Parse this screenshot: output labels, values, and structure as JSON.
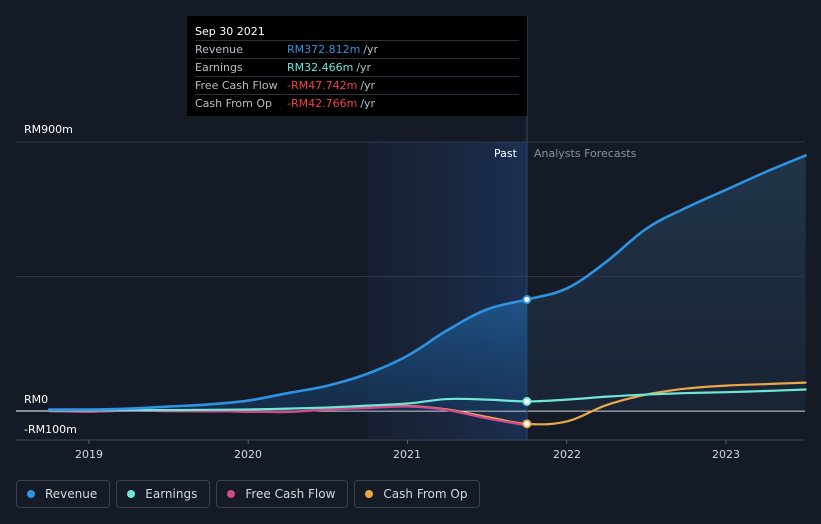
{
  "tooltip": {
    "date": "Sep 30 2021",
    "rows": [
      {
        "label": "Revenue",
        "value": "RM372.812m",
        "unit": "/yr",
        "color": "#2e93e3"
      },
      {
        "label": "Earnings",
        "value": "RM32.466m",
        "unit": "/yr",
        "color": "#6ee7d9"
      },
      {
        "label": "Free Cash Flow",
        "value": "-RM47.742m",
        "unit": "/yr",
        "color": "#ef4444"
      },
      {
        "label": "Cash From Op",
        "value": "-RM42.766m",
        "unit": "/yr",
        "color": "#ef4444"
      }
    ]
  },
  "labels": {
    "past": "Past",
    "forecast": "Analysts Forecasts"
  },
  "chart_data": {
    "type": "line",
    "title": "",
    "xlabel": "",
    "ylabel": "",
    "ylim": [
      -100,
      900
    ],
    "xlim": [
      2018.75,
      2023.5
    ],
    "y_tick_labels": [
      {
        "value": 900,
        "label": "RM900m"
      },
      {
        "value": 0,
        "label": "RM0"
      },
      {
        "value": -100,
        "label": "-RM100m"
      }
    ],
    "x_tick_labels": [
      {
        "value": 2019,
        "label": "2019"
      },
      {
        "value": 2020,
        "label": "2020"
      },
      {
        "value": 2021,
        "label": "2021"
      },
      {
        "value": 2022,
        "label": "2022"
      },
      {
        "value": 2023,
        "label": "2023"
      }
    ],
    "past_end": 2021.75,
    "highlight_start": 2020.75,
    "series": [
      {
        "name": "Revenue",
        "color": "#2e93e3",
        "x": [
          2018.75,
          2019.0,
          2019.25,
          2019.5,
          2019.75,
          2020.0,
          2020.25,
          2020.5,
          2020.75,
          2021.0,
          2021.25,
          2021.5,
          2021.75,
          2022.0,
          2022.25,
          2022.5,
          2022.75,
          2023.0,
          2023.25,
          2023.5
        ],
        "y": [
          5,
          5,
          8,
          15,
          22,
          35,
          60,
          85,
          125,
          185,
          270,
          340,
          373,
          410,
          500,
          610,
          680,
          740,
          800,
          855
        ]
      },
      {
        "name": "Earnings",
        "color": "#6ee7d9",
        "x": [
          2018.75,
          2019.0,
          2019.25,
          2019.5,
          2019.75,
          2020.0,
          2020.25,
          2020.5,
          2020.75,
          2021.0,
          2021.25,
          2021.5,
          2021.75,
          2022.0,
          2022.25,
          2022.5,
          2022.75,
          2023.0,
          2023.25,
          2023.5
        ],
        "y": [
          2,
          2,
          3,
          3,
          4,
          5,
          8,
          12,
          18,
          25,
          40,
          38,
          32,
          38,
          48,
          55,
          60,
          63,
          67,
          72
        ]
      },
      {
        "name": "Free Cash Flow",
        "color": "#d0488d",
        "x": [
          2018.75,
          2019.0,
          2019.25,
          2019.5,
          2019.75,
          2020.0,
          2020.25,
          2020.5,
          2020.75,
          2021.0,
          2021.25,
          2021.5,
          2021.75
        ],
        "y": [
          0,
          -2,
          1,
          0,
          -1,
          -2,
          -3,
          5,
          10,
          15,
          3,
          -25,
          -48
        ]
      },
      {
        "name": "Cash From Op",
        "color": "#e8a84a",
        "x": [
          2018.75,
          2019.0,
          2019.25,
          2019.5,
          2019.75,
          2020.0,
          2020.25,
          2020.5,
          2020.75,
          2021.0,
          2021.25,
          2021.5,
          2021.75,
          2022.0,
          2022.25,
          2022.5,
          2022.75,
          2023.0,
          2023.25,
          2023.5
        ],
        "y": [
          0,
          -2,
          1,
          0,
          -1,
          -2,
          -3,
          6,
          11,
          17,
          5,
          -20,
          -43,
          -35,
          20,
          55,
          75,
          85,
          90,
          95
        ]
      }
    ],
    "markers": [
      {
        "series": "Revenue",
        "x": 2021.75,
        "y": 373
      },
      {
        "series": "Earnings",
        "x": 2021.75,
        "y": 32
      },
      {
        "series": "Cash From Op",
        "x": 2021.75,
        "y": -43
      }
    ]
  },
  "legend": [
    {
      "label": "Revenue",
      "color": "#2e93e3"
    },
    {
      "label": "Earnings",
      "color": "#6ee7d9"
    },
    {
      "label": "Free Cash Flow",
      "color": "#d0488d"
    },
    {
      "label": "Cash From Op",
      "color": "#e8a84a"
    }
  ]
}
